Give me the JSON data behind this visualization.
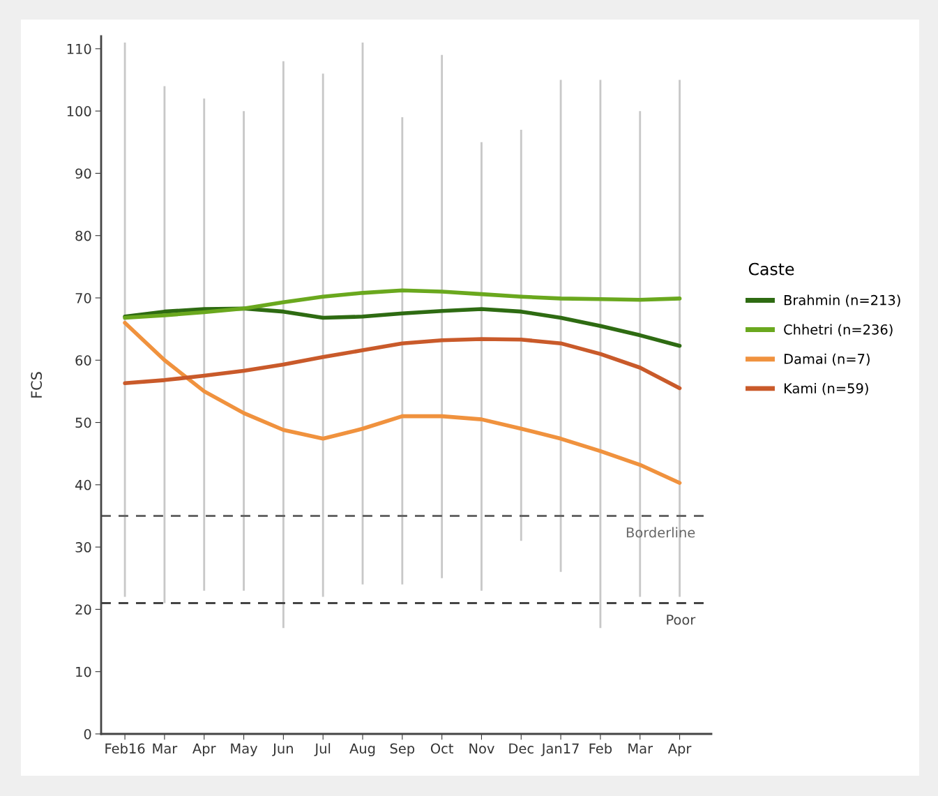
{
  "chart_data": {
    "type": "line",
    "ylabel": "FCS",
    "legend_title": "Caste",
    "legend": "right",
    "categories": [
      "Feb16",
      "Mar",
      "Apr",
      "May",
      "Jun",
      "Jul",
      "Aug",
      "Sep",
      "Oct",
      "Nov",
      "Dec",
      "Jan17",
      "Feb",
      "Mar",
      "Apr"
    ],
    "ylim": [
      0,
      112
    ],
    "yticks": [
      0,
      10,
      20,
      30,
      40,
      50,
      60,
      70,
      80,
      90,
      100,
      110
    ],
    "grid": false,
    "line_style": "solid",
    "marker": "none",
    "series": [
      {
        "type": "bar",
        "color": "#c8c8c8",
        "base": [
          22,
          21,
          23,
          23,
          17,
          22,
          24,
          24,
          25,
          23,
          31,
          26,
          17,
          22,
          22
        ],
        "values": [
          89,
          83,
          79,
          77,
          91,
          84,
          87,
          75,
          84,
          72,
          66,
          79,
          88,
          78,
          83
        ]
      },
      {
        "name": "Brahmin (n=213)",
        "color": "#2e6b12",
        "values": [
          67,
          67.8,
          68.2,
          68.3,
          67.8,
          66.8,
          67,
          67.5,
          67.9,
          68.2,
          67.8,
          66.8,
          65.5,
          64,
          62.3
        ]
      },
      {
        "name": "Chhetri (n=236)",
        "color": "#6aa81e",
        "values": [
          66.8,
          67.2,
          67.7,
          68.3,
          69.3,
          70.2,
          70.8,
          71.2,
          71,
          70.6,
          70.2,
          69.9,
          69.8,
          69.7,
          69.9
        ]
      },
      {
        "name": "Damai (n=7)",
        "color": "#f0923e",
        "values": [
          66,
          60,
          55,
          51.5,
          48.8,
          47.4,
          49,
          51,
          51,
          50.5,
          49,
          47.4,
          45.4,
          43.2,
          40.3
        ]
      },
      {
        "name": "Kami (n=59)",
        "color": "#c95a2a",
        "values": [
          56.3,
          56.8,
          57.5,
          58.3,
          59.3,
          60.5,
          61.6,
          62.7,
          63.2,
          63.4,
          63.3,
          62.7,
          61,
          58.8,
          55.5
        ]
      }
    ],
    "ref_lines": [
      {
        "axis": "y",
        "value": 35,
        "label": "Borderline",
        "color": "#666666",
        "line_style": "dashed"
      },
      {
        "axis": "y",
        "value": 21,
        "label": "Poor",
        "color": "#444444",
        "line_style": "dashed"
      }
    ]
  }
}
